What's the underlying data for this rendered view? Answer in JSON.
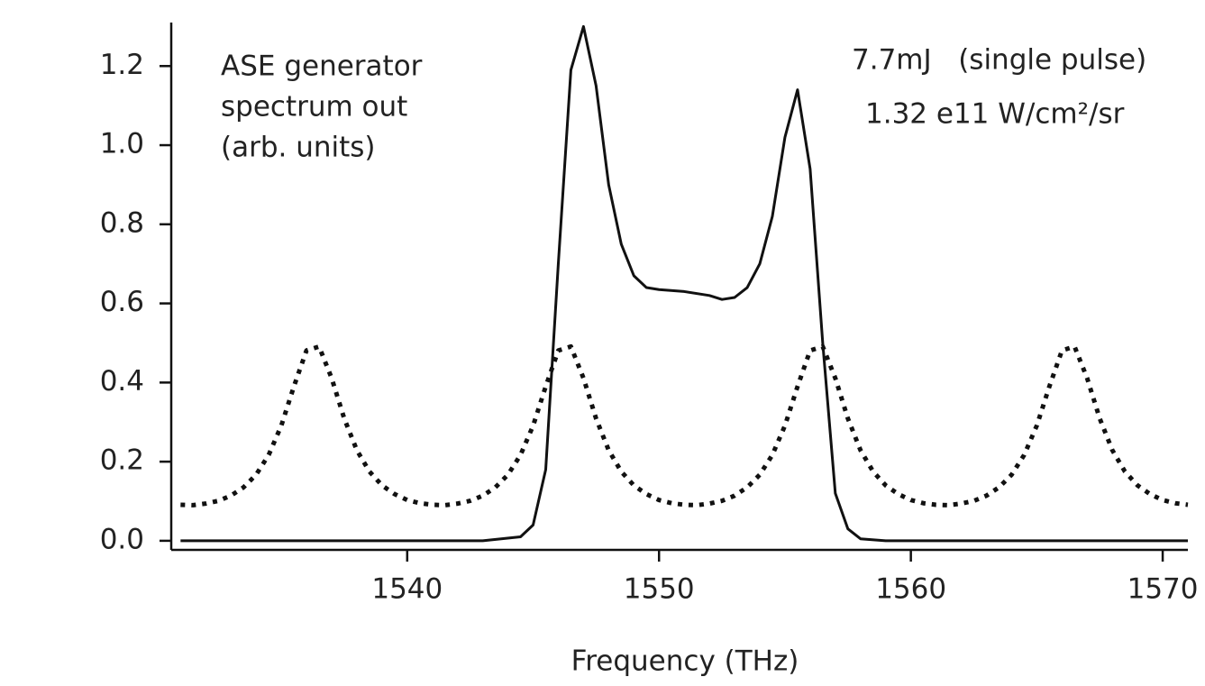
{
  "chart_data": {
    "type": "line",
    "xlabel": "Frequency (THz)",
    "annotations": [
      "ASE generator",
      "spectrum out",
      "(arb. units)",
      "7.7mJ   (single pulse)",
      "1.32 e11 W/cm²/sr"
    ],
    "xlim": [
      1530.63,
      1571.0
    ],
    "xticks": [
      1540,
      1550,
      1560,
      1570
    ],
    "ylim": [
      -0.023,
      1.31
    ],
    "yticks": [
      {
        "value": 0,
        "label": "0.0"
      },
      0.2,
      0.4,
      0.6,
      0.8,
      {
        "value": 1,
        "label": "1.0"
      },
      1.2
    ],
    "series": [
      {
        "color": "#111111",
        "style": "solid",
        "x": [
          1531,
          1543,
          1544.5,
          1545,
          1545.5,
          1546,
          1546.5,
          1547,
          1547.5,
          1548,
          1548.5,
          1549,
          1549.5,
          1550,
          1551,
          1552,
          1552.5,
          1553,
          1553.5,
          1554,
          1554.5,
          1555,
          1555.5,
          1556,
          1556.5,
          1557,
          1557.5,
          1558,
          1559,
          1571
        ],
        "values": [
          0,
          0,
          0.01,
          0.04,
          0.18,
          0.7,
          1.19,
          1.3,
          1.15,
          0.9,
          0.75,
          0.67,
          0.64,
          0.635,
          0.63,
          0.62,
          0.61,
          0.615,
          0.64,
          0.7,
          0.82,
          1.02,
          1.14,
          0.94,
          0.5,
          0.12,
          0.03,
          0.005,
          0,
          0
        ]
      },
      {
        "color": "#111111",
        "style": "dotted",
        "x": [
          1531,
          1531.5,
          1532,
          1532.5,
          1533,
          1533.5,
          1534,
          1534.5,
          1535,
          1535.5,
          1536,
          1536.5,
          1537,
          1537.5,
          1538,
          1538.5,
          1539,
          1539.5,
          1540,
          1540.5,
          1541,
          1541.5,
          1542,
          1542.5,
          1543,
          1543.5,
          1544,
          1544.5,
          1545,
          1545.5,
          1546,
          1546.5,
          1547,
          1547.5,
          1548,
          1548.5,
          1549,
          1549.5,
          1550,
          1550.5,
          1551,
          1551.5,
          1552,
          1552.5,
          1553,
          1553.5,
          1554,
          1554.5,
          1555,
          1555.5,
          1556,
          1556.5,
          1557,
          1557.5,
          1558,
          1558.5,
          1559,
          1559.5,
          1560,
          1560.5,
          1561,
          1561.5,
          1562,
          1562.5,
          1563,
          1563.5,
          1564,
          1564.5,
          1565,
          1565.5,
          1566,
          1566.5,
          1567,
          1567.5,
          1568,
          1568.5,
          1569,
          1569.5,
          1570,
          1570.5,
          1571
        ],
        "values": [
          0.091,
          0.09,
          0.094,
          0.101,
          0.114,
          0.135,
          0.167,
          0.217,
          0.291,
          0.39,
          0.481,
          0.491,
          0.411,
          0.309,
          0.229,
          0.175,
          0.14,
          0.118,
          0.103,
          0.095,
          0.091,
          0.09,
          0.094,
          0.101,
          0.114,
          0.135,
          0.167,
          0.217,
          0.291,
          0.39,
          0.481,
          0.491,
          0.411,
          0.309,
          0.229,
          0.175,
          0.14,
          0.118,
          0.103,
          0.095,
          0.091,
          0.09,
          0.094,
          0.101,
          0.114,
          0.135,
          0.167,
          0.217,
          0.291,
          0.39,
          0.481,
          0.491,
          0.411,
          0.309,
          0.229,
          0.175,
          0.14,
          0.118,
          0.103,
          0.095,
          0.091,
          0.09,
          0.094,
          0.101,
          0.114,
          0.135,
          0.167,
          0.217,
          0.291,
          0.39,
          0.481,
          0.491,
          0.411,
          0.309,
          0.229,
          0.175,
          0.14,
          0.118,
          0.103,
          0.095,
          0.091
        ]
      }
    ]
  }
}
